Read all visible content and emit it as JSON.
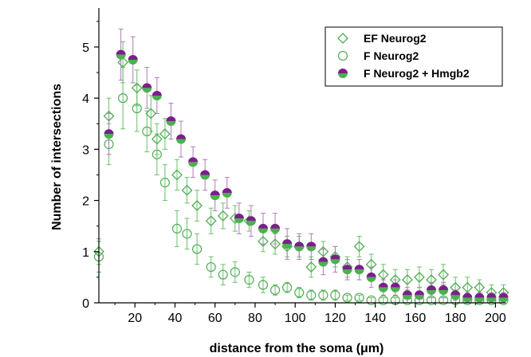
{
  "chart_data": {
    "type": "scatter",
    "xlabel": "distance from the soma (μm)",
    "ylabel": "Number of intersections",
    "xlim": [
      2,
      205
    ],
    "ylim": [
      0,
      5.7
    ],
    "xticks": [
      20,
      40,
      60,
      80,
      100,
      120,
      140,
      160,
      180,
      200
    ],
    "yticks": [
      0,
      1,
      2,
      3,
      4,
      5
    ],
    "legend_position": "top-right",
    "colors": {
      "green": "#4caf50",
      "purple": "#7b1f8a",
      "error_green": "#6bbf6b",
      "error_purple": "#b07ab8"
    },
    "series": [
      {
        "name": "EF Neurog2",
        "marker": "diamond-open",
        "x": [
          0,
          7,
          14,
          21,
          28,
          31,
          35,
          41,
          46,
          51,
          58,
          64,
          70,
          77,
          84,
          90,
          96,
          102,
          108,
          114,
          120,
          126,
          132,
          138,
          144,
          150,
          156,
          162,
          168,
          174,
          180,
          186,
          192,
          198,
          204
        ],
        "y": [
          1.0,
          3.65,
          4.7,
          4.2,
          3.7,
          3.2,
          3.3,
          2.5,
          2.2,
          1.9,
          1.6,
          1.7,
          1.65,
          1.6,
          1.2,
          1.15,
          1.1,
          1.1,
          0.7,
          1.0,
          0.9,
          0.7,
          1.1,
          0.75,
          0.55,
          0.45,
          0.45,
          0.5,
          0.45,
          0.55,
          0.3,
          0.3,
          0.3,
          0.2,
          0.2
        ],
        "err": [
          0.25,
          0.35,
          0.4,
          0.35,
          0.35,
          0.3,
          0.3,
          0.3,
          0.25,
          0.3,
          0.25,
          0.25,
          0.25,
          0.2,
          0.2,
          0.2,
          0.2,
          0.2,
          0.2,
          0.2,
          0.2,
          0.2,
          0.2,
          0.2,
          0.2,
          0.2,
          0.2,
          0.2,
          0.2,
          0.2,
          0.2,
          0.2,
          0.15,
          0.15,
          0.15
        ]
      },
      {
        "name": "F Neurog2",
        "marker": "circle-open",
        "x": [
          0,
          7,
          14,
          21,
          26,
          31,
          35,
          41,
          46,
          51,
          58,
          64,
          70,
          77,
          84,
          90,
          96,
          102,
          108,
          114,
          120,
          126,
          132,
          138,
          144,
          150,
          156,
          162,
          168,
          174,
          180,
          186,
          192,
          198,
          204
        ],
        "y": [
          0.9,
          3.1,
          4.0,
          3.8,
          3.35,
          2.9,
          2.35,
          1.45,
          1.35,
          1.05,
          0.7,
          0.55,
          0.6,
          0.45,
          0.35,
          0.25,
          0.3,
          0.2,
          0.15,
          0.15,
          0.15,
          0.1,
          0.1,
          0.05,
          0.05,
          0.05,
          0.05,
          0.05,
          0.05,
          0.05,
          0.05,
          0.05,
          0.05,
          0.05,
          0.05
        ],
        "err": [
          0.3,
          0.4,
          0.6,
          0.45,
          0.4,
          0.4,
          0.35,
          0.35,
          0.3,
          0.3,
          0.2,
          0.2,
          0.2,
          0.15,
          0.15,
          0.1,
          0.1,
          0.1,
          0.1,
          0.1,
          0.1,
          0.05,
          0.05,
          0.05,
          0.05,
          0.05,
          0.05,
          0.05,
          0.05,
          0.05,
          0.05,
          0.05,
          0.05,
          0.05,
          0.05
        ]
      },
      {
        "name": "F Neurog2 + Hmgb2",
        "marker": "circle-half",
        "x": [
          7,
          13,
          19,
          26,
          31,
          38,
          43,
          49,
          55,
          60,
          66,
          72,
          78,
          84,
          90,
          96,
          102,
          108,
          114,
          120,
          126,
          132,
          138,
          144,
          150,
          156,
          162,
          168,
          174,
          180,
          186,
          192,
          198,
          204
        ],
        "y": [
          3.3,
          4.85,
          4.75,
          4.2,
          4.05,
          3.55,
          3.2,
          2.75,
          2.5,
          2.1,
          2.15,
          1.65,
          1.6,
          1.45,
          1.45,
          1.15,
          1.1,
          1.1,
          0.8,
          0.85,
          0.65,
          0.65,
          0.5,
          0.3,
          0.3,
          0.15,
          0.15,
          0.25,
          0.25,
          0.15,
          0.1,
          0.1,
          0.1,
          0.1
        ],
        "err": [
          0.4,
          0.5,
          0.45,
          0.4,
          0.35,
          0.35,
          0.35,
          0.3,
          0.3,
          0.3,
          0.3,
          0.3,
          0.3,
          0.3,
          0.3,
          0.3,
          0.25,
          0.25,
          0.25,
          0.25,
          0.2,
          0.2,
          0.2,
          0.15,
          0.15,
          0.15,
          0.15,
          0.15,
          0.15,
          0.1,
          0.1,
          0.1,
          0.1,
          0.1
        ]
      }
    ]
  }
}
